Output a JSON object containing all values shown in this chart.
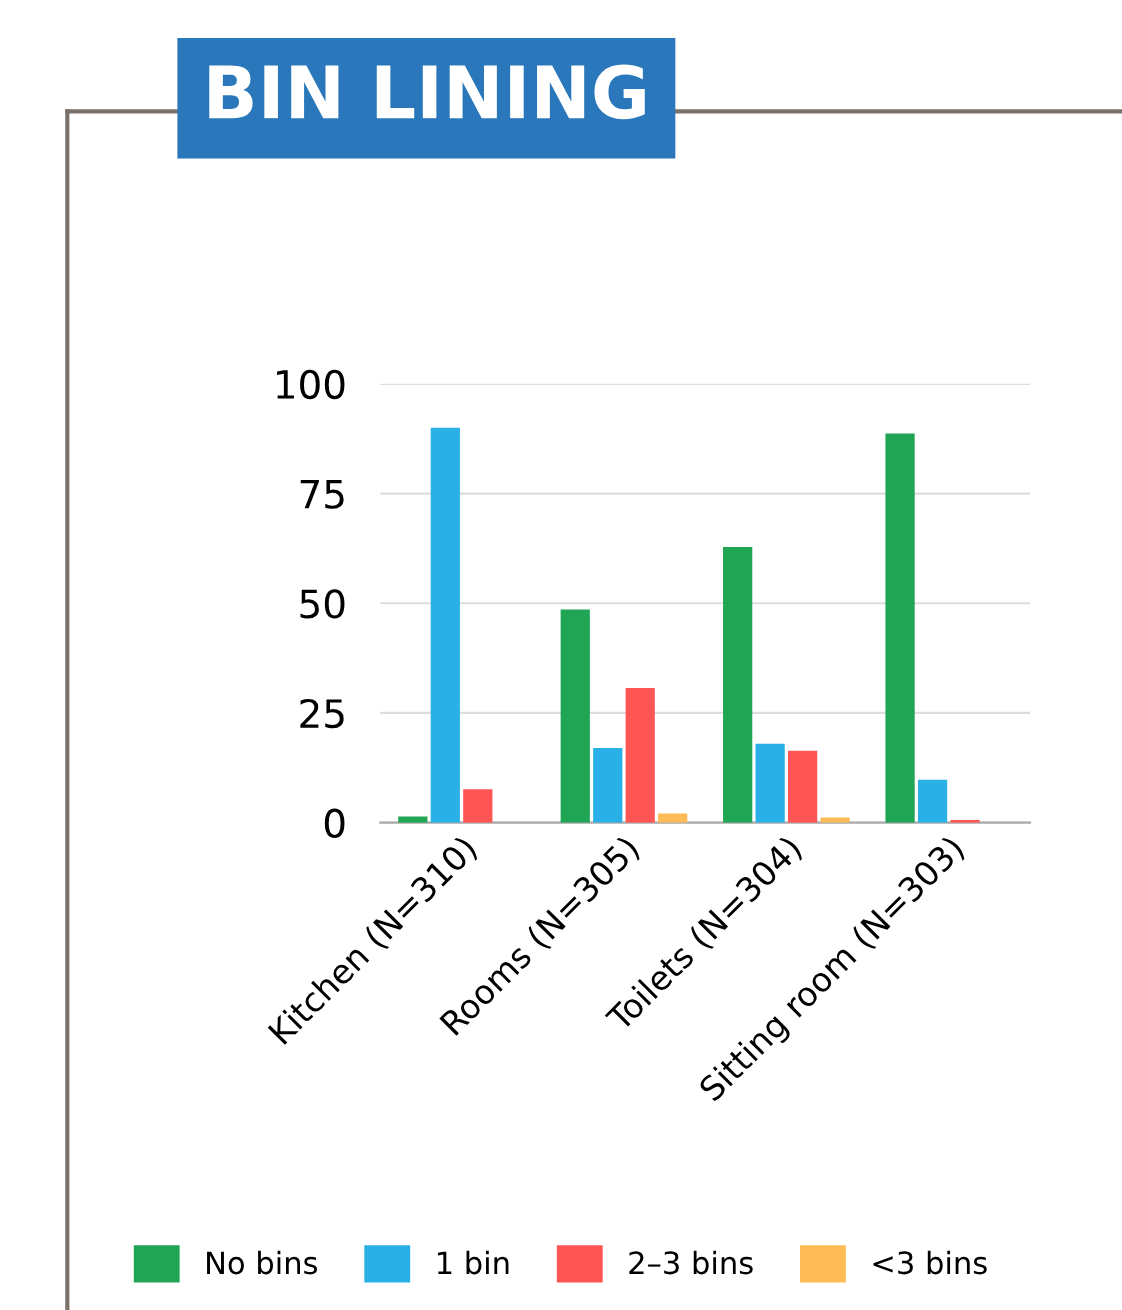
{
  "chart_data": {
    "type": "bar",
    "title": "BIN LINING",
    "categories": [
      "Kitchen (N=310)",
      "Rooms (N=305)",
      "Toilets (N=304)",
      "Sitting room (N=303)"
    ],
    "series": [
      {
        "name": "No bins",
        "color": "#1fa553",
        "values": [
          1.4,
          48.6,
          62.8,
          88.7
        ]
      },
      {
        "name": "1 bin",
        "color": "#29b0e6",
        "values": [
          90,
          17,
          18,
          9.8
        ]
      },
      {
        "name": "2–3 bins",
        "color": "#ff5555",
        "values": [
          7.6,
          30.7,
          16.4,
          0.6
        ]
      },
      {
        "name": "<3 bins",
        "color": "#ffbb55",
        "values": [
          0,
          2.1,
          1.2,
          0
        ]
      }
    ],
    "ylim": [
      0,
      100
    ],
    "yticks": [
      0,
      25,
      50,
      75,
      100
    ],
    "grid": "y",
    "legend": "bottom"
  }
}
